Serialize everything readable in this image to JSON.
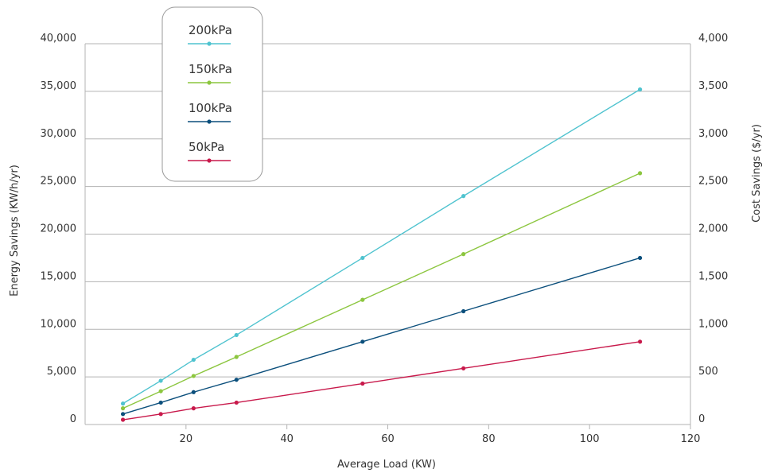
{
  "chart_data": {
    "type": "line",
    "xlabel": "Average Load (KW)",
    "ylabel": "Energy Savings (KW/h/yr)",
    "y2label": "Cost Savings ($/yr)",
    "xlim": [
      0,
      120
    ],
    "ylim": [
      0,
      40000
    ],
    "y2lim": [
      0,
      4000
    ],
    "x_ticks": [
      20,
      40,
      60,
      80,
      100,
      120
    ],
    "y_ticks": [
      "0",
      "5,000",
      "10,000",
      "15,000",
      "20,000",
      "25,000",
      "30,000",
      "35,000",
      "40,000"
    ],
    "y2_ticks": [
      "0",
      "500",
      "1,000",
      "1,500",
      "2,000",
      "2,500",
      "3,000",
      "3,500",
      "4,000"
    ],
    "grid": true,
    "legend_position": "top-left",
    "x": [
      7.5,
      15,
      21.5,
      30,
      55,
      75,
      110
    ],
    "series": [
      {
        "name": "200kPa",
        "color": "#4fc3cf",
        "values": [
          2200,
          4600,
          6800,
          9400,
          17500,
          24000,
          35200
        ]
      },
      {
        "name": "150kPa",
        "color": "#8cc63f",
        "values": [
          1700,
          3500,
          5100,
          7100,
          13100,
          17900,
          26400
        ]
      },
      {
        "name": "100kPa",
        "color": "#0b4f7c",
        "values": [
          1100,
          2300,
          3400,
          4700,
          8700,
          11900,
          17500
        ]
      },
      {
        "name": "50kPa",
        "color": "#c8194b",
        "values": [
          500,
          1100,
          1700,
          2300,
          4300,
          5900,
          8700
        ]
      }
    ]
  }
}
